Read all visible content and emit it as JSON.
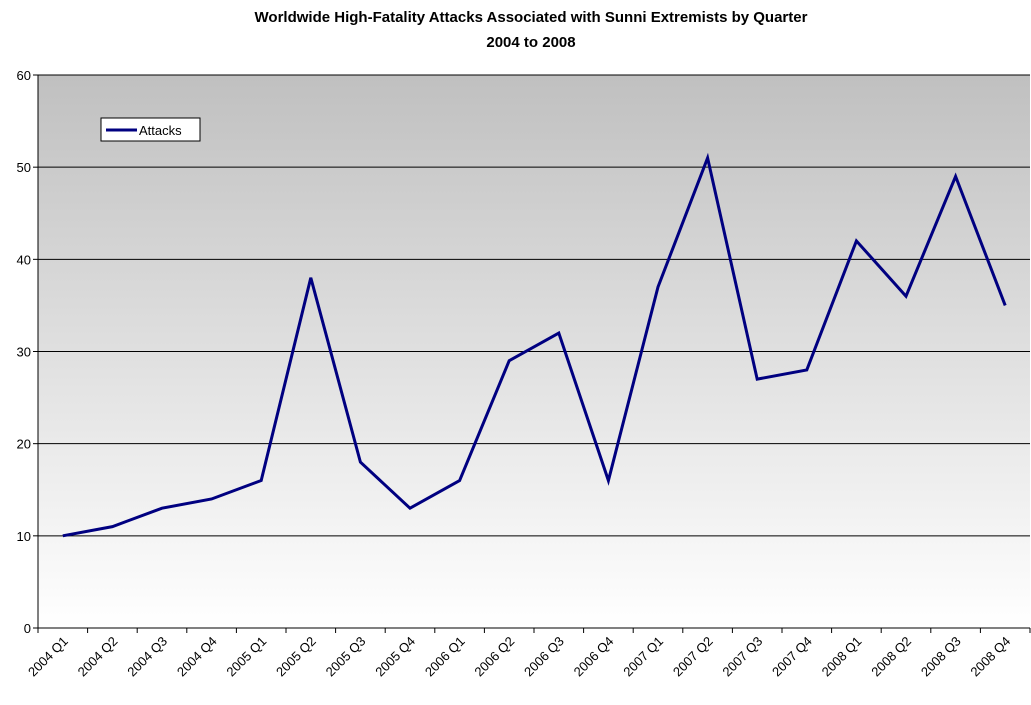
{
  "chart_data": {
    "type": "line",
    "title": "Worldwide High-Fatality Attacks Associated with Sunni Extremists by Quarter",
    "subtitle": "2004 to 2008",
    "xlabel": "",
    "ylabel": "",
    "ylim": [
      0,
      60
    ],
    "yticks": [
      0,
      10,
      20,
      30,
      40,
      50,
      60
    ],
    "grid": true,
    "legend_position": "top-left",
    "categories": [
      "2004 Q1",
      "2004 Q2",
      "2004 Q3",
      "2004 Q4",
      "2005 Q1",
      "2005 Q2",
      "2005 Q3",
      "2005 Q4",
      "2006 Q1",
      "2006 Q2",
      "2006 Q3",
      "2006 Q4",
      "2007 Q1",
      "2007 Q2",
      "2007 Q3",
      "2007 Q4",
      "2008 Q1",
      "2008 Q2",
      "2008 Q3",
      "2008 Q4"
    ],
    "series": [
      {
        "name": "Attacks",
        "color": "#000080",
        "values": [
          10,
          11,
          13,
          14,
          16,
          38,
          18,
          13,
          16,
          29,
          32,
          16,
          37,
          51,
          27,
          28,
          42,
          36,
          49,
          35
        ]
      }
    ],
    "plot_background": {
      "top_color": "#c0c0c0",
      "bottom_color": "#ffffff"
    }
  }
}
